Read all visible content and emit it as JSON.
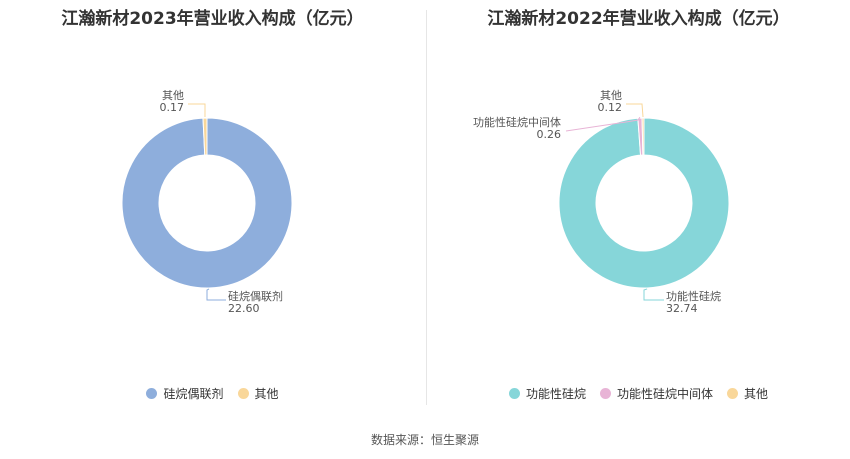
{
  "source_text": "数据来源：恒生聚源",
  "chart_data": [
    {
      "type": "pie",
      "title": "江瀚新材2023年营业收入构成（亿元）",
      "series": [
        {
          "name": "硅烷偶联剂",
          "value": 22.6,
          "color": "#8eaedc"
        },
        {
          "name": "其他",
          "value": 0.17,
          "color": "#f9d79a"
        }
      ],
      "donut": true,
      "legend_position": "bottom"
    },
    {
      "type": "pie",
      "title": "江瀚新材2022年营业收入构成（亿元）",
      "series": [
        {
          "name": "功能性硅烷",
          "value": 32.74,
          "color": "#86d6d9"
        },
        {
          "name": "功能性硅烷中间体",
          "value": 0.26,
          "color": "#e8b4d6"
        },
        {
          "name": "其他",
          "value": 0.12,
          "color": "#f9d79a"
        }
      ],
      "donut": true,
      "legend_position": "bottom"
    }
  ]
}
